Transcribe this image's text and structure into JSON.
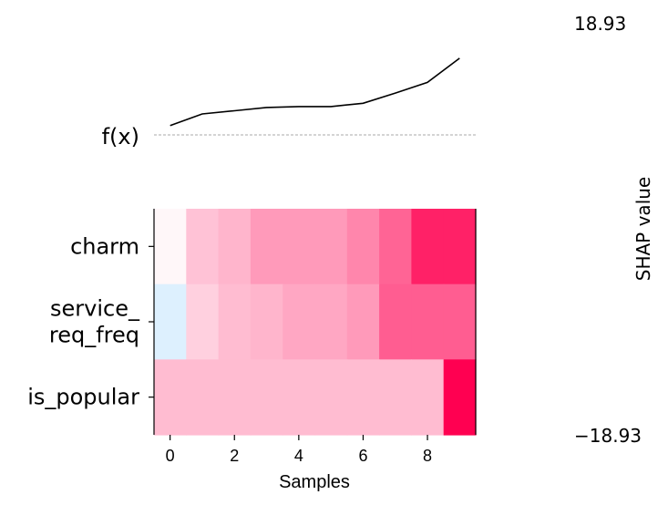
{
  "chart_data": {
    "type": "heatmap",
    "xlabel": "Samples",
    "fx_label": "f(x)",
    "colorbar_label": "SHAP value",
    "colorbar_max_label": "18.93",
    "colorbar_min_label": "−18.93",
    "color_range": [
      -18.93,
      18.93
    ],
    "colors": {
      "negative": "#008bfb",
      "positive": "#ff0051",
      "fx_line": "#000000",
      "baseline": "#aaaaaa"
    },
    "x_ticks": [
      0,
      2,
      4,
      6,
      8
    ],
    "samples": [
      0,
      1,
      2,
      3,
      4,
      5,
      6,
      7,
      8,
      9
    ],
    "features": [
      "charm",
      "service_\nreq_freq",
      "is_popular"
    ],
    "shap_values": [
      [
        0.6,
        4.5,
        5.5,
        7.5,
        7.5,
        7.5,
        9.0,
        11.5,
        16.5,
        16.5
      ],
      [
        -2.5,
        3.5,
        5.0,
        5.5,
        6.5,
        6.5,
        7.5,
        12.0,
        12.0,
        12.0
      ],
      [
        5.0,
        5.0,
        5.0,
        5.0,
        5.0,
        5.0,
        5.0,
        5.0,
        5.0,
        18.93
      ]
    ],
    "fx_values": [
      2.0,
      4.5,
      5.2,
      5.9,
      6.1,
      6.1,
      6.8,
      9.0,
      11.3,
      16.5
    ],
    "fx_baseline": 0
  }
}
